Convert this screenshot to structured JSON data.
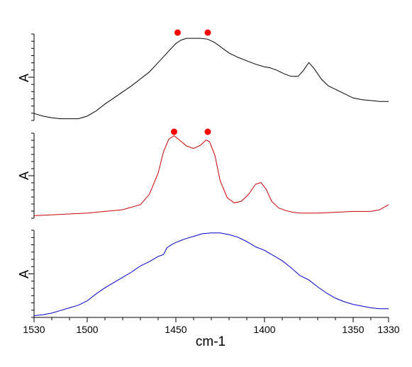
{
  "chart_data": {
    "type": "line",
    "layout": "three vertically stacked panels sharing one x axis",
    "xlabel": "cm-1",
    "x_axis_reversed": true,
    "xlim": [
      1530,
      1330
    ],
    "x_ticks": [
      1530,
      1500,
      1450,
      1400,
      1350,
      1330
    ],
    "x_tick_labels": [
      "1530",
      "1500",
      "1450",
      "1400",
      "1350",
      "1330"
    ],
    "grid": false,
    "panels": [
      {
        "ylabel": "A",
        "color": "#000000",
        "markers": {
          "color": "#ff0000",
          "x": [
            1449,
            1432
          ]
        },
        "x": [
          1530,
          1525,
          1520,
          1515,
          1510,
          1505,
          1500,
          1495,
          1490,
          1485,
          1480,
          1475,
          1470,
          1465,
          1460,
          1455,
          1450,
          1447,
          1444,
          1440,
          1436,
          1432,
          1428,
          1424,
          1420,
          1415,
          1410,
          1405,
          1400,
          1397,
          1393,
          1389,
          1385,
          1381,
          1378,
          1375,
          1372,
          1368,
          1364,
          1360,
          1355,
          1350,
          1345,
          1340,
          1335,
          1330
        ],
        "y": [
          0.08,
          0.05,
          0.03,
          0.02,
          0.02,
          0.02,
          0.05,
          0.11,
          0.19,
          0.26,
          0.33,
          0.4,
          0.48,
          0.56,
          0.67,
          0.78,
          0.89,
          0.93,
          0.95,
          0.95,
          0.95,
          0.94,
          0.9,
          0.84,
          0.78,
          0.73,
          0.69,
          0.65,
          0.62,
          0.61,
          0.58,
          0.54,
          0.51,
          0.51,
          0.58,
          0.67,
          0.6,
          0.48,
          0.4,
          0.36,
          0.31,
          0.26,
          0.24,
          0.23,
          0.22,
          0.22
        ]
      },
      {
        "ylabel": "A",
        "color": "#cc0000",
        "markers": {
          "color": "#ff0000",
          "x": [
            1451,
            1432
          ]
        },
        "x": [
          1530,
          1520,
          1510,
          1500,
          1490,
          1480,
          1470,
          1465,
          1460,
          1457,
          1454,
          1451,
          1448,
          1444,
          1440,
          1436,
          1433,
          1431,
          1428,
          1425,
          1421,
          1417,
          1413,
          1409,
          1405,
          1402,
          1399,
          1396,
          1392,
          1388,
          1384,
          1380,
          1375,
          1370,
          1360,
          1350,
          1340,
          1335,
          1330
        ],
        "y": [
          0.03,
          0.04,
          0.05,
          0.06,
          0.08,
          0.1,
          0.16,
          0.28,
          0.53,
          0.78,
          0.93,
          0.97,
          0.92,
          0.85,
          0.82,
          0.86,
          0.92,
          0.9,
          0.74,
          0.44,
          0.24,
          0.18,
          0.2,
          0.28,
          0.4,
          0.42,
          0.34,
          0.2,
          0.12,
          0.09,
          0.07,
          0.06,
          0.06,
          0.06,
          0.07,
          0.08,
          0.08,
          0.1,
          0.16
        ]
      },
      {
        "ylabel": "A",
        "color": "#0000cc",
        "x": [
          1530,
          1525,
          1520,
          1515,
          1510,
          1505,
          1500,
          1495,
          1490,
          1485,
          1480,
          1475,
          1470,
          1465,
          1460,
          1457,
          1455,
          1452,
          1450,
          1445,
          1440,
          1435,
          1430,
          1425,
          1420,
          1415,
          1410,
          1405,
          1400,
          1395,
          1390,
          1385,
          1380,
          1375,
          1370,
          1365,
          1360,
          1355,
          1350,
          1345,
          1340,
          1335,
          1330
        ],
        "y": [
          0.02,
          0.03,
          0.05,
          0.08,
          0.11,
          0.14,
          0.19,
          0.27,
          0.34,
          0.4,
          0.46,
          0.52,
          0.59,
          0.64,
          0.7,
          0.72,
          0.8,
          0.84,
          0.86,
          0.9,
          0.93,
          0.96,
          0.97,
          0.97,
          0.95,
          0.92,
          0.87,
          0.81,
          0.77,
          0.71,
          0.65,
          0.57,
          0.48,
          0.43,
          0.35,
          0.28,
          0.22,
          0.18,
          0.15,
          0.13,
          0.11,
          0.1,
          0.1
        ]
      }
    ]
  }
}
